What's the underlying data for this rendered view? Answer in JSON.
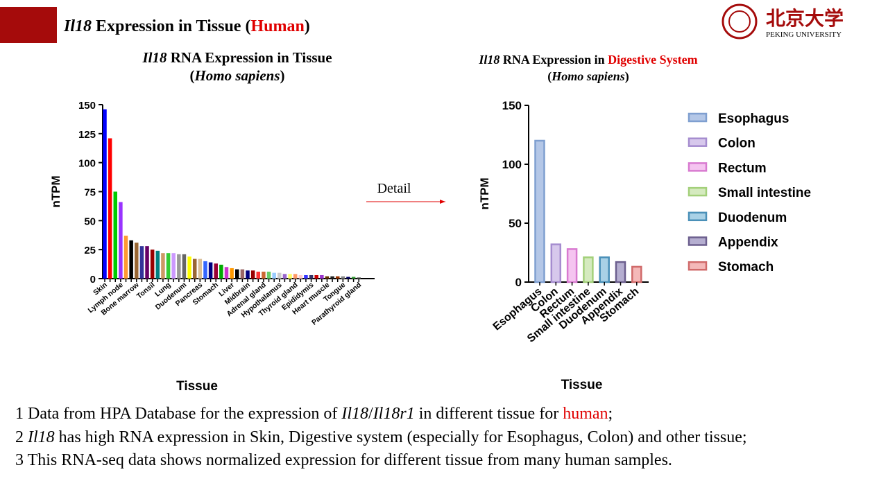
{
  "header": {
    "title": [
      "Il18",
      " Expression in Tissue (",
      "Human",
      ")"
    ],
    "logo_cn": "北京大学",
    "logo_en": "PEKING UNIVERSITY"
  },
  "arrow_label": "Detail",
  "notes": [
    [
      "1 Data from HPA Database for the expression of ",
      "Il18",
      "/",
      "Il18r1",
      " in different tissue for ",
      "human",
      ";"
    ],
    [
      "2 ",
      "Il18",
      " has high RNA expression in Skin, Digestive system (especially for Esophagus, Colon) and other tissue;"
    ],
    [
      "3 This RNA-seq data shows normalized expression for different tissue from many human samples."
    ]
  ],
  "chart_data": [
    {
      "type": "bar",
      "title": [
        "Il18",
        " RNA Expression in Tissue"
      ],
      "subtitle": [
        "(",
        "Homo sapiens",
        ")"
      ],
      "x_label": "Tissue",
      "y_label": "nTPM",
      "categories": [
        "Skin",
        null,
        null,
        "Lymph node",
        null,
        null,
        "Bone marrow",
        null,
        null,
        "Tonsil",
        null,
        null,
        "Lung",
        null,
        null,
        "Duodenum",
        null,
        null,
        "Pancreas",
        null,
        null,
        "Stomach",
        null,
        null,
        "Liver",
        null,
        null,
        "Midbrain",
        null,
        null,
        "Adrenal gland",
        null,
        null,
        "Hypothalamus",
        null,
        null,
        "Thyroid gland",
        null,
        null,
        "Epididymis",
        null,
        null,
        "Heart muscle",
        null,
        null,
        "Tongue",
        null,
        null,
        "Parathyroid gland"
      ],
      "values": [
        146,
        121,
        75,
        66,
        37,
        33,
        31,
        28,
        28,
        25,
        24,
        22,
        22,
        22,
        21,
        21,
        19,
        17,
        17,
        15,
        14,
        13,
        12,
        10,
        9,
        8,
        8,
        7,
        7,
        6,
        6,
        6,
        5,
        5,
        4,
        4,
        4,
        3,
        3,
        3,
        3,
        3,
        2,
        2,
        2,
        2,
        1.5,
        1.5,
        1
      ],
      "colors": [
        "#0000ff",
        "#ff0000",
        "#00cc00",
        "#9933ff",
        "#ff9933",
        "#000000",
        "#996633",
        "#333399",
        "#660066",
        "#990000",
        "#008080",
        "#cc9966",
        "#33cc33",
        "#cc99ff",
        "#999999",
        "#666666",
        "#ffff00",
        "#996633",
        "#d9bf99",
        "#3366ff",
        "#000080",
        "#990033",
        "#00aa00",
        "#cc33cc",
        "#ff9900",
        "#000000",
        "#996666",
        "#000080",
        "#990000",
        "#ff3333",
        "#cc6633",
        "#66cc66",
        "#99ccff",
        "#cccccc",
        "#9966cc",
        "#ffff66",
        "#ff9966",
        "#ffcccc",
        "#3333ff",
        "#333366",
        "#cc0000",
        "#9933cc",
        "#663300",
        "#222222",
        "#993300",
        "#888888",
        "#000066",
        "#339933",
        "#555555"
      ],
      "ylim": [
        0,
        150
      ],
      "yticks": [
        0,
        25,
        50,
        75,
        100,
        125,
        150
      ]
    },
    {
      "type": "bar",
      "title": [
        "Il18",
        " RNA Expression in ",
        "Digestive System"
      ],
      "subtitle": [
        "(",
        "Homo sapiens",
        ")"
      ],
      "x_label": "Tissue",
      "y_label": "nTPM",
      "categories": [
        "Esophagus",
        "Colon",
        "Rectum",
        "Small intestine",
        "Duodenum",
        "Appendix",
        "Stomach"
      ],
      "values": [
        120,
        32,
        28,
        21,
        21,
        17,
        13
      ],
      "colors": [
        "#b4c7e7",
        "#d7c8ec",
        "#f5c4f0",
        "#d5eabf",
        "#a9d1e6",
        "#b5aed0",
        "#f4b8b8"
      ],
      "edge_colors": [
        "#7f9fd0",
        "#a58ccf",
        "#d87ad0",
        "#a3d07a",
        "#4a90b8",
        "#6c5f8e",
        "#d06a6a"
      ],
      "ylim": [
        0,
        150
      ],
      "yticks": [
        0,
        50,
        100,
        150
      ],
      "legend": "right"
    }
  ]
}
